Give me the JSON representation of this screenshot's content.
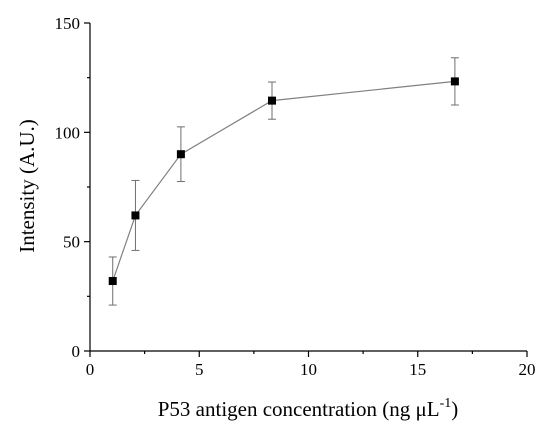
{
  "chart_data": {
    "type": "line",
    "title": "",
    "xlabel": "P53 antigen concentration (ng μL",
    "xlabel_superscript": "-1",
    "xlabel_suffix": ")",
    "ylabel": "Intensity (A.U.)",
    "xlim": [
      0,
      20
    ],
    "ylim": [
      0,
      150
    ],
    "xticks": [
      0,
      5,
      10,
      15,
      20
    ],
    "yticks": [
      0,
      50,
      100,
      150
    ],
    "grid": false,
    "legend": "none",
    "marker": "square",
    "line_color": "#808080",
    "marker_color": "#000000",
    "series": [
      {
        "x": [
          1.04,
          2.08,
          4.16,
          8.33,
          16.7
        ],
        "y": [
          32,
          62,
          90,
          114.5,
          123.3
        ],
        "error": [
          11,
          16,
          12.5,
          8.5,
          10.8
        ]
      }
    ]
  }
}
